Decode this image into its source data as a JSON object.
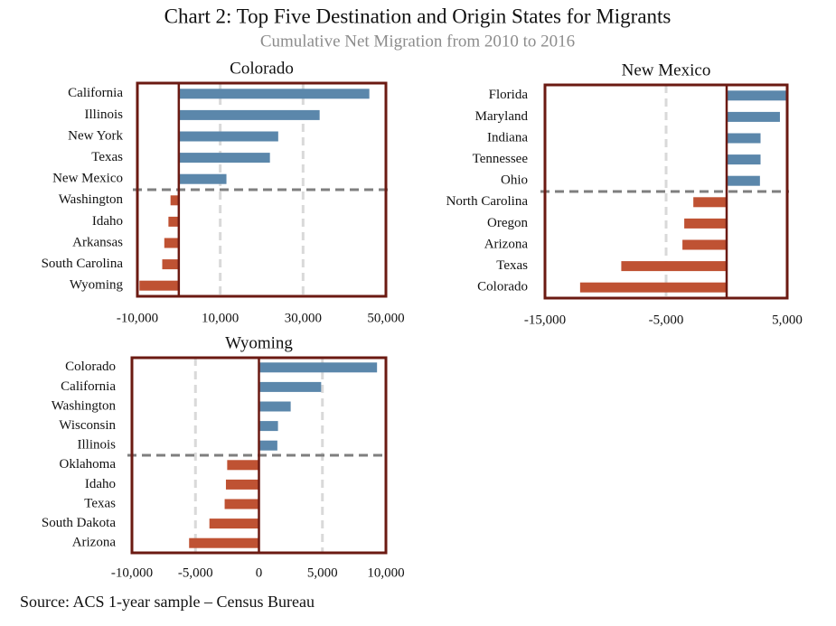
{
  "title": "Chart 2: Top Five Destination and Origin States for Migrants",
  "subtitle": "Cumulative Net Migration from 2010 to 2016",
  "source": "Source: ACS 1-year sample – Census Bureau",
  "chart_data": [
    {
      "type": "bar",
      "orientation": "horizontal",
      "title": "Colorado",
      "categories": [
        "California",
        "Illinois",
        "New York",
        "Texas",
        "New Mexico",
        "Washington",
        "Idaho",
        "Arkansas",
        "South Carolina",
        "Wyoming"
      ],
      "values": [
        46000,
        34000,
        24000,
        22000,
        11500,
        -2000,
        -2500,
        -3500,
        -4000,
        -9500
      ],
      "xlim": [
        -10000,
        50000
      ],
      "xticks": [
        {
          "value": -10000,
          "label": "-10,000"
        },
        {
          "value": 10000,
          "label": "10,000"
        },
        {
          "value": 30000,
          "label": "30,000"
        },
        {
          "value": 50000,
          "label": "50,000"
        }
      ],
      "grid": true,
      "positive_color": "#5b87ab",
      "negative_color": "#bf5233"
    },
    {
      "type": "bar",
      "orientation": "horizontal",
      "title": "New Mexico",
      "categories": [
        "Florida",
        "Maryland",
        "Indiana",
        "Tennessee",
        "Ohio",
        "North Carolina",
        "Oregon",
        "Arizona",
        "Texas",
        "Colorado"
      ],
      "values": [
        5000,
        4400,
        2800,
        2800,
        2750,
        -2750,
        -3500,
        -3650,
        -8700,
        -12100
      ],
      "xlim": [
        -15000,
        5000
      ],
      "xticks": [
        {
          "value": -15000,
          "label": "-15,000"
        },
        {
          "value": -5000,
          "label": "-5,000"
        },
        {
          "value": 5000,
          "label": "5,000"
        }
      ],
      "grid": true,
      "positive_color": "#5b87ab",
      "negative_color": "#bf5233"
    },
    {
      "type": "bar",
      "orientation": "horizontal",
      "title": "Wyoming",
      "categories": [
        "Colorado",
        "California",
        "Washington",
        "Wisconsin",
        "Illinois",
        "Oklahoma",
        "Idaho",
        "Texas",
        "South Dakota",
        "Arizona"
      ],
      "values": [
        9300,
        4900,
        2500,
        1500,
        1450,
        -2500,
        -2600,
        -2700,
        -3900,
        -5500
      ],
      "xlim": [
        -10000,
        10000
      ],
      "xticks": [
        {
          "value": -10000,
          "label": "-10,000"
        },
        {
          "value": -5000,
          "label": "-5,000"
        },
        0,
        {
          "value": 5000,
          "label": "5,000"
        },
        {
          "value": 10000,
          "label": "10,000"
        }
      ],
      "grid": true,
      "positive_color": "#5b87ab",
      "negative_color": "#bf5233"
    }
  ]
}
